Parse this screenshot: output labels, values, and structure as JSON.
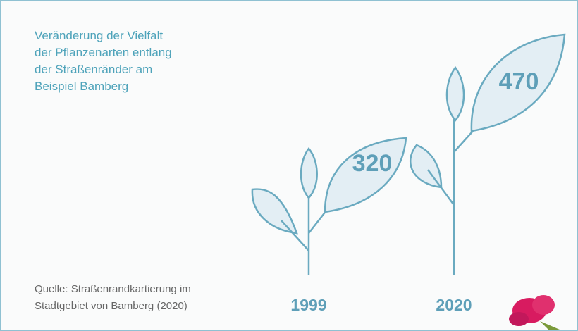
{
  "title_lines": [
    "Veränderung der Vielfalt",
    "der Pflanzenarten entlang",
    "der Straßenränder am",
    "Beispiel Bamberg"
  ],
  "items": [
    {
      "year": "1999",
      "value": 320
    },
    {
      "year": "2020",
      "value": 470
    }
  ],
  "source_lines": [
    "Quelle: Straßenrandkartierung im",
    "Stadtgebiet von Bamberg (2020)"
  ]
}
